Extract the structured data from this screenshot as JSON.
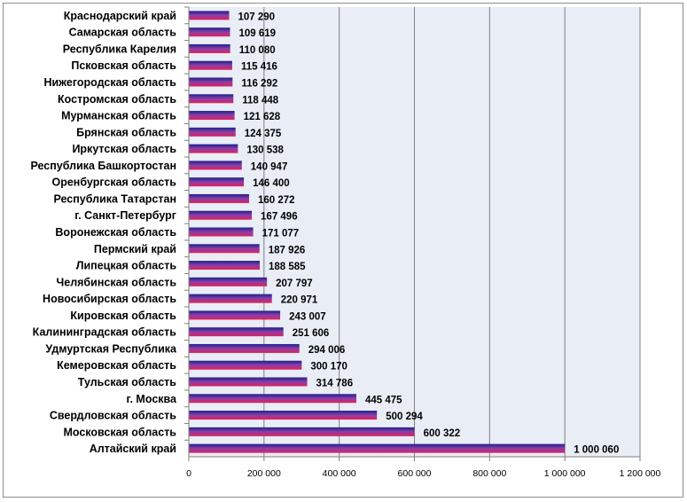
{
  "chart_data": {
    "type": "bar",
    "orientation": "horizontal",
    "title": "",
    "xlabel": "",
    "ylabel": "",
    "xlim": [
      0,
      1200000
    ],
    "grid": true,
    "legend": "none",
    "categories": [
      "Краснодарский край",
      "Самарская область",
      "Республика Карелия",
      "Псковская область",
      "Нижегородская область",
      "Костромская область",
      "Мурманская область",
      "Брянская область",
      "Иркутская область",
      "Республика Башкортостан",
      "Оренбургская область",
      "Республика Татарстан",
      "г. Санкт-Петербург",
      "Воронежская область",
      "Пермский край",
      "Липецкая область",
      "Челябинская область",
      "Новосибирская область",
      "Кировская область",
      "Калининградская область",
      "Удмуртская Республика",
      "Кемеровская область",
      "Тульская область",
      "г. Москва",
      "Свердловская область",
      "Московская область",
      "Алтайский край"
    ],
    "values": [
      107290,
      109619,
      110080,
      115416,
      116292,
      118448,
      121628,
      124375,
      130538,
      140947,
      146400,
      160272,
      167496,
      171077,
      187926,
      188585,
      207797,
      220971,
      243007,
      251606,
      294006,
      300170,
      314786,
      445475,
      500294,
      600322,
      1000060
    ],
    "value_labels": [
      "107 290",
      "109 619",
      "110 080",
      "115 416",
      "116 292",
      "118 448",
      "121 628",
      "124 375",
      "130 538",
      "140 947",
      "146 400",
      "160 272",
      "167 496",
      "171 077",
      "187 926",
      "188 585",
      "207 797",
      "220 971",
      "243 007",
      "251 606",
      "294 006",
      "300 170",
      "314 786",
      "445 475",
      "500 294",
      "600 322",
      "1 000 060"
    ],
    "x_ticks": [
      0,
      200000,
      400000,
      600000,
      800000,
      1000000,
      1200000
    ],
    "x_tick_labels": [
      "0",
      "200 000",
      "400 000",
      "600 000",
      "800 000",
      "1 000 000",
      "1 200 000"
    ],
    "colors": {
      "plot_background": "#e9edf6",
      "gridline": "#7f7f7f",
      "axis": "#7f7f7f",
      "bar_gradient": [
        "#1f1f8c",
        "#8a3fa8",
        "#e0205a"
      ]
    }
  }
}
